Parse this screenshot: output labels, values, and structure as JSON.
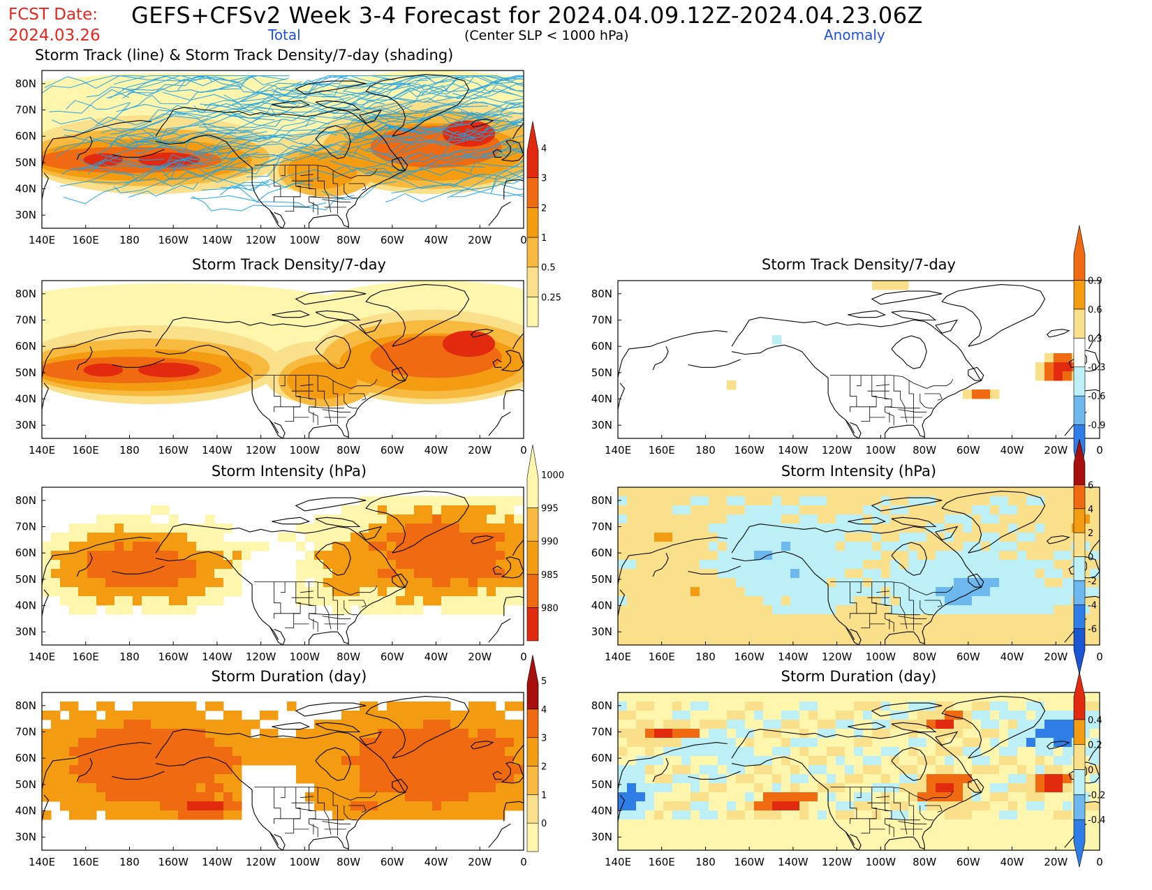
{
  "header": {
    "fcst_label": "FCST Date:",
    "fcst_date": "2024.03.26",
    "title": "GEFS+CFSv2 Week 3-4 Forecast for 2024.04.09.12Z-2024.04.23.06Z",
    "total_label": "Total",
    "center_label": "(Center SLP < 1000 hPa)",
    "anomaly_label": "Anomaly",
    "top_subtitle": "Storm Track (line) & Storm Track Density/7-day (shading)"
  },
  "panels": {
    "density_total_title": "Storm Track Density/7-day",
    "density_anom_title": "Storm Track Density/7-day",
    "intensity_total_title": "Storm Intensity (hPa)",
    "intensity_anom_title": "Storm Intensity (hPa)",
    "duration_total_title": "Storm Duration (day)",
    "duration_anom_title": "Storm Duration (day)"
  },
  "axes": {
    "lon_labels": [
      "140E",
      "160E",
      "180",
      "160W",
      "140W",
      "120W",
      "100W",
      "80W",
      "60W",
      "40W",
      "20W",
      "0"
    ],
    "lat_labels": [
      "80N",
      "70N",
      "60N",
      "50N",
      "40N",
      "30N"
    ]
  },
  "colorbars": {
    "density_total": [
      "0.25",
      "0.5",
      "1",
      "2",
      "3",
      "4"
    ],
    "density_anom": [
      "-0.9",
      "-0.6",
      "-0.3",
      "0.3",
      "0.6",
      "0.9"
    ],
    "intensity_total": [
      "980",
      "985",
      "990",
      "995",
      "1000"
    ],
    "intensity_anom": [
      "-6",
      "-4",
      "-2",
      "0",
      "2",
      "4",
      "6"
    ],
    "duration_total": [
      "0",
      "1",
      "2",
      "3",
      "4",
      "5"
    ],
    "duration_anom": [
      "-0.4",
      "-0.2",
      "0",
      "0.2",
      "0.4"
    ]
  },
  "colors": {
    "pale_yellow": "#fff6ae",
    "yellow": "#fbe08c",
    "light_orange": "#f8ba3e",
    "orange": "#f39c12",
    "dark_orange": "#ef6a11",
    "red": "#e12a0e",
    "dark_red": "#a80f0f",
    "light_blue": "#bdeff7",
    "mid_blue": "#6cb8ef",
    "blue": "#2f7de6",
    "dark_blue": "#1b55d2",
    "track_line": "#1ea3e6",
    "header_red": "#e8261d",
    "header_blue": "#1f4fe0"
  }
}
